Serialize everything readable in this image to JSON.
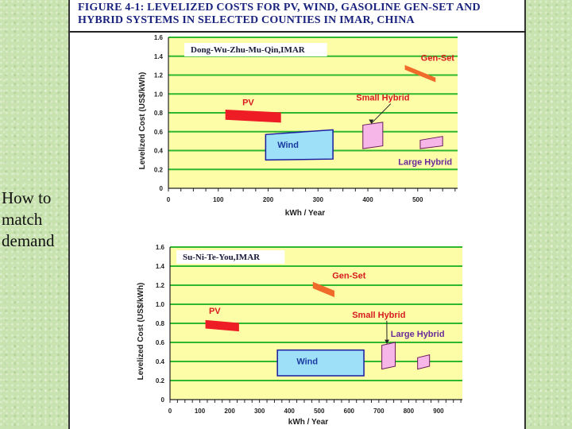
{
  "slide": {
    "side_text_lines": [
      "How to",
      "match",
      "demand"
    ]
  },
  "figure": {
    "title_lines": [
      "FIGURE 4-1: LEVELIZED COSTS FOR PV, WIND, GASOLINE GEN-SET AND",
      "HYBRID SYSTEMS IN SELECTED COUNTIES IN IMAR, CHINA"
    ]
  },
  "colors": {
    "plot_bg": "#fdfda8",
    "grid": "#2fb82f",
    "pv": "#ee1c24",
    "wind": "#9ee0f7",
    "wind_edge": "#1a1aa0",
    "genset": "#f06a2a",
    "hybrid": "#f7b6e8",
    "hybrid_edge": "#6a1a5a",
    "label_red": "#d8191f",
    "label_blue": "#1a3aa0",
    "label_purple": "#6a2a9a"
  },
  "chart_data": [
    {
      "type": "range-bar",
      "title": "Dong-Wu-Zhu-Mu-Qin,IMAR",
      "xlabel": "kWh / Year",
      "ylabel": "Levelized Cost (US$/kWh)",
      "xlim": [
        0,
        580
      ],
      "ylim": [
        0,
        1.6
      ],
      "x_ticks": [
        0,
        100,
        200,
        300,
        400,
        500
      ],
      "y_ticks": [
        0,
        0.2,
        0.4,
        0.6,
        0.8,
        1.0,
        1.2,
        1.4,
        1.6
      ],
      "y_tick_labels": [
        "0",
        "0.2",
        "0.4",
        "0.6",
        "0.8",
        "1.0",
        "1.2",
        "1.4",
        "1.6"
      ],
      "grid": true,
      "series": [
        {
          "name": "PV",
          "color_key": "pv",
          "label_color": "label_red",
          "x": [
            115,
            225
          ],
          "y_low": [
            0.73,
            0.7
          ],
          "y_high": [
            0.83,
            0.8
          ],
          "label_at": [
            160,
            0.88
          ]
        },
        {
          "name": "Wind",
          "color_key": "wind",
          "label_color": "label_blue",
          "x": [
            195,
            330
          ],
          "y_low": [
            0.3,
            0.31
          ],
          "y_high": [
            0.57,
            0.62
          ],
          "label_at": [
            240,
            0.43
          ]
        },
        {
          "name": "Gen-Set",
          "color_key": "genset",
          "label_color": "label_red",
          "x": [
            475,
            535
          ],
          "y_low": [
            1.26,
            1.13
          ],
          "y_high": [
            1.3,
            1.17
          ],
          "label_at": [
            540,
            1.35
          ]
        },
        {
          "name": "Small Hybrid",
          "color_key": "hybrid",
          "label_color": "label_red",
          "x": [
            390,
            430
          ],
          "y_low": [
            0.42,
            0.45
          ],
          "y_high": [
            0.67,
            0.7
          ],
          "label_at": [
            430,
            0.93
          ]
        },
        {
          "name": "Large Hybrid",
          "color_key": "hybrid",
          "label_color": "label_purple",
          "x": [
            505,
            550
          ],
          "y_low": [
            0.42,
            0.45
          ],
          "y_high": [
            0.51,
            0.55
          ],
          "label_at": [
            515,
            0.25
          ]
        }
      ]
    },
    {
      "type": "range-bar",
      "title": "Su-Ni-Te-You,IMAR",
      "xlabel": "kWh / Year",
      "ylabel": "Levelized Cost (US$/kWh)",
      "xlim": [
        0,
        980
      ],
      "ylim": [
        0,
        1.6
      ],
      "x_ticks": [
        0,
        100,
        200,
        300,
        400,
        500,
        600,
        700,
        800,
        900
      ],
      "y_ticks": [
        0,
        0.2,
        0.4,
        0.6,
        0.8,
        1.0,
        1.2,
        1.4,
        1.6
      ],
      "y_tick_labels": [
        "0",
        "0.2",
        "0.4",
        "0.6",
        "0.8",
        "1.0",
        "1.2",
        "1.4",
        "1.6"
      ],
      "grid": true,
      "series": [
        {
          "name": "PV",
          "color_key": "pv",
          "label_color": "label_red",
          "x": [
            120,
            230
          ],
          "y_low": [
            0.75,
            0.72
          ],
          "y_high": [
            0.83,
            0.8
          ],
          "label_at": [
            150,
            0.9
          ]
        },
        {
          "name": "Wind",
          "color_key": "wind",
          "label_color": "label_blue",
          "x": [
            360,
            650
          ],
          "y_low": [
            0.25,
            0.25
          ],
          "y_high": [
            0.52,
            0.52
          ],
          "label_at": [
            460,
            0.37
          ]
        },
        {
          "name": "Gen-Set",
          "color_key": "genset",
          "label_color": "label_red",
          "x": [
            480,
            550
          ],
          "y_low": [
            1.17,
            1.08
          ],
          "y_high": [
            1.23,
            1.14
          ],
          "label_at": [
            600,
            1.27
          ]
        },
        {
          "name": "Small Hybrid",
          "color_key": "hybrid",
          "label_color": "label_red",
          "x": [
            710,
            755
          ],
          "y_low": [
            0.32,
            0.35
          ],
          "y_high": [
            0.57,
            0.6
          ],
          "label_at": [
            700,
            0.86
          ]
        },
        {
          "name": "Large Hybrid",
          "color_key": "hybrid",
          "label_color": "label_purple",
          "x": [
            830,
            870
          ],
          "y_low": [
            0.32,
            0.35
          ],
          "y_high": [
            0.44,
            0.47
          ],
          "label_at": [
            830,
            0.66
          ]
        }
      ]
    }
  ]
}
